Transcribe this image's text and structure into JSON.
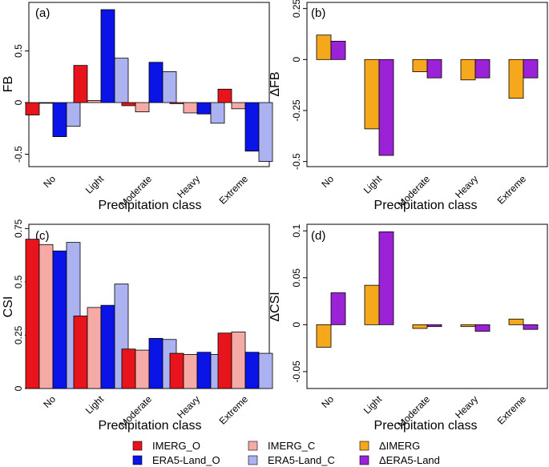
{
  "colors": {
    "IMERG_O": "#e8141c",
    "IMERG_C": "#f6aaa6",
    "ERA5-Land_O": "#0a14e6",
    "ERA5-Land_C": "#acb2f0",
    "dIMERG": "#f6a81c",
    "dERA5-Land": "#9b22d6"
  },
  "chart_data": [
    {
      "id": "a",
      "panel_label": "(a)",
      "type": "bar",
      "ylabel": "FB",
      "xlabel": "Precipitation class",
      "categories": [
        "No",
        "Light",
        "Moderate",
        "Heavy",
        "Extreme"
      ],
      "ylim": [
        -0.62,
        0.97
      ],
      "yticks": [
        -0.5,
        0,
        0.5
      ],
      "ytick_labels": [
        "-0.5",
        "0",
        "0.5"
      ],
      "series": [
        {
          "name": "IMERG_O",
          "values": [
            -0.12,
            0.36,
            -0.03,
            -0.01,
            0.13
          ]
        },
        {
          "name": "IMERG_C",
          "values": [
            0.0,
            0.02,
            -0.09,
            -0.1,
            -0.06
          ]
        },
        {
          "name": "ERA5-Land_O",
          "values": [
            -0.33,
            0.9,
            0.39,
            -0.11,
            -0.47
          ]
        },
        {
          "name": "ERA5-Land_C",
          "values": [
            -0.23,
            0.43,
            0.3,
            -0.2,
            -0.57
          ]
        }
      ]
    },
    {
      "id": "b",
      "panel_label": "(b)",
      "type": "bar",
      "ylabel": "ΔFB",
      "xlabel": "Precipitation class",
      "categories": [
        "No",
        "Light",
        "Moderate",
        "Heavy",
        "Extreme"
      ],
      "ylim": [
        -0.525,
        0.28
      ],
      "yticks": [
        -0.5,
        -0.25,
        0,
        0.25
      ],
      "ytick_labels": [
        "-0.5",
        "-0.25",
        "0",
        "0.25"
      ],
      "series": [
        {
          "name": "ΔIMERG",
          "values": [
            0.12,
            -0.34,
            -0.06,
            -0.1,
            -0.19
          ]
        },
        {
          "name": "ΔERA5-Land",
          "values": [
            0.09,
            -0.47,
            -0.09,
            -0.09,
            -0.09
          ]
        }
      ]
    },
    {
      "id": "c",
      "panel_label": "(c)",
      "type": "bar",
      "ylabel": "CSI",
      "xlabel": "Precipitation class",
      "categories": [
        "No",
        "Light",
        "Moderate",
        "Heavy",
        "Extreme"
      ],
      "ylim": [
        0,
        0.77
      ],
      "yticks": [
        0,
        0.25,
        0.5,
        0.75
      ],
      "ytick_labels": [
        "0",
        "0.25",
        "0.5",
        "0.75"
      ],
      "series": [
        {
          "name": "IMERG_O",
          "values": [
            0.7,
            0.34,
            0.185,
            0.165,
            0.26
          ]
        },
        {
          "name": "IMERG_C",
          "values": [
            0.675,
            0.38,
            0.18,
            0.16,
            0.265
          ]
        },
        {
          "name": "ERA5-Land_O",
          "values": [
            0.645,
            0.39,
            0.235,
            0.17,
            0.17
          ]
        },
        {
          "name": "ERA5-Land_C",
          "values": [
            0.685,
            0.49,
            0.23,
            0.16,
            0.165
          ]
        }
      ]
    },
    {
      "id": "d",
      "panel_label": "(d)",
      "type": "bar",
      "ylabel": "ΔCSI",
      "xlabel": "Precipitation class",
      "categories": [
        "No",
        "Light",
        "Moderate",
        "Heavy",
        "Extreme"
      ],
      "ylim": [
        -0.068,
        0.107
      ],
      "yticks": [
        -0.05,
        0,
        0.05,
        0.1
      ],
      "ytick_labels": [
        "-0.05",
        "0",
        "0.05",
        "0.1"
      ],
      "series": [
        {
          "name": "ΔIMERG",
          "values": [
            -0.024,
            0.042,
            -0.004,
            -0.002,
            0.006
          ]
        },
        {
          "name": "ΔERA5-Land",
          "values": [
            0.034,
            0.099,
            -0.002,
            -0.007,
            -0.005
          ]
        }
      ]
    }
  ],
  "legend": [
    {
      "label": "IMERG_O",
      "color": "#e8141c"
    },
    {
      "label": "IMERG_C",
      "color": "#f6aaa6"
    },
    {
      "label": "ΔIMERG",
      "color": "#f6a81c"
    },
    {
      "label": "ERA5-Land_O",
      "color": "#0a14e6"
    },
    {
      "label": "ERA5-Land_C",
      "color": "#acb2f0"
    },
    {
      "label": "ΔERA5-Land",
      "color": "#9b22d6"
    }
  ]
}
